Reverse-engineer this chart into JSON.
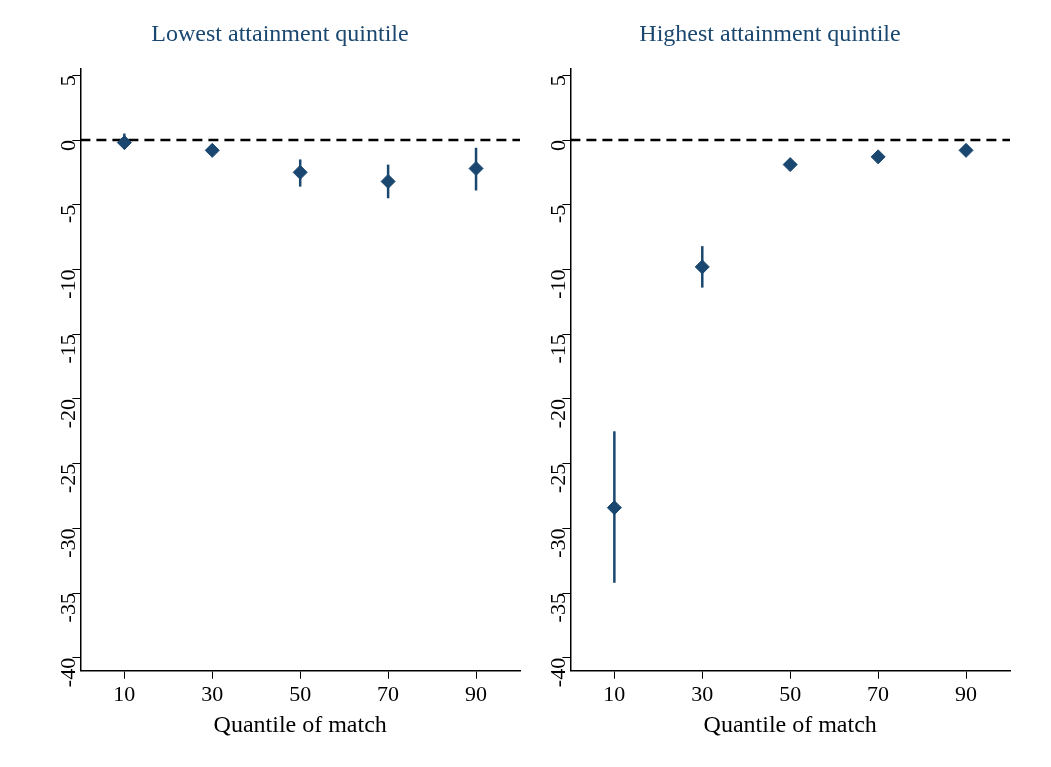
{
  "chart_data": [
    {
      "type": "scatter",
      "title": "Lowest attainment quintile",
      "xlabel": "Quantile of match",
      "x": [
        10,
        30,
        50,
        70,
        90
      ],
      "values": [
        -0.2,
        -0.8,
        -2.5,
        -3.2,
        -2.2
      ],
      "errors": [
        [
          -0.7,
          0.5
        ],
        [
          -1.1,
          -0.5
        ],
        [
          -3.6,
          -1.5
        ],
        [
          -4.5,
          -1.9
        ],
        [
          -3.9,
          -0.6
        ]
      ],
      "color": "#1a476f",
      "marker": "diamond",
      "xlim": [
        0,
        100
      ],
      "xticks": [
        10,
        30,
        50,
        70,
        90
      ],
      "ylim": [
        -41,
        5.5
      ],
      "yticks": [
        -40,
        -35,
        -30,
        -25,
        -20,
        -15,
        -10,
        -5,
        0,
        5
      ],
      "grid": false,
      "legend": false,
      "ref_lines": [
        {
          "axis": "y",
          "value": 0,
          "line_style": "dashed",
          "color": "#000000"
        }
      ]
    },
    {
      "type": "scatter",
      "title": "Highest attainment quintile",
      "xlabel": "Quantile of match",
      "x": [
        10,
        30,
        50,
        70,
        90
      ],
      "values": [
        -28.4,
        -9.8,
        -1.9,
        -1.3,
        -0.8
      ],
      "errors": [
        [
          -34.2,
          -22.5
        ],
        [
          -11.4,
          -8.2
        ],
        [
          -2.1,
          -1.7
        ],
        [
          -1.5,
          -1.1
        ],
        [
          -1.0,
          -0.6
        ]
      ],
      "color": "#1a476f",
      "marker": "diamond",
      "xlim": [
        0,
        100
      ],
      "xticks": [
        10,
        30,
        50,
        70,
        90
      ],
      "ylim": [
        -41,
        5.5
      ],
      "yticks": [
        -40,
        -35,
        -30,
        -25,
        -20,
        -15,
        -10,
        -5,
        0,
        5
      ],
      "grid": false,
      "legend": false,
      "ref_lines": [
        {
          "axis": "y",
          "value": 0,
          "line_style": "dashed",
          "color": "#000000"
        }
      ]
    }
  ]
}
